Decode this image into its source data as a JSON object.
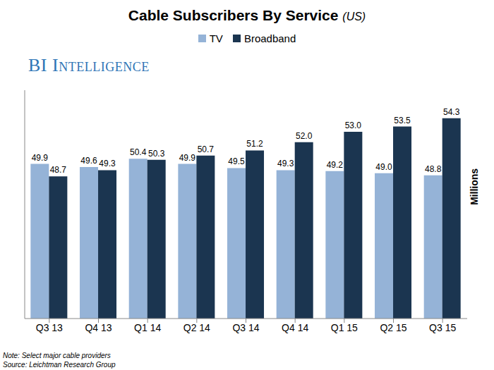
{
  "chart_data": {
    "type": "bar",
    "title": "Cable Subscribers By Service",
    "subtitle": "(US)",
    "watermark": "BI Intelligence",
    "y_label": "Millions",
    "note": "Note: Select major cable providers",
    "source": "Source: Leichtman Research Group",
    "categories": [
      "Q3 13",
      "Q4 13",
      "Q1 14",
      "Q2 14",
      "Q3 14",
      "Q4 14",
      "Q1 15",
      "Q2 15",
      "Q3 15"
    ],
    "series": [
      {
        "name": "TV",
        "color": "#95b3d7",
        "values": [
          49.9,
          49.6,
          50.4,
          49.9,
          49.5,
          49.3,
          49.2,
          49.0,
          48.8
        ],
        "value_labels": [
          "49.9",
          "49.6",
          "50.4",
          "49.9",
          "49.5",
          "49.3",
          "49.2",
          "49.0",
          "48.8"
        ]
      },
      {
        "name": "Broadband",
        "color": "#1b3550",
        "values": [
          48.7,
          49.3,
          50.3,
          50.7,
          51.2,
          52.0,
          53.0,
          53.5,
          54.3
        ],
        "value_labels": [
          "48.7",
          "49.3",
          "50.3",
          "50.7",
          "51.2",
          "52.0",
          "53.0",
          "53.5",
          "54.3"
        ]
      }
    ],
    "ylim": [
      35,
      57
    ],
    "yticks": [
      35,
      40,
      45,
      50,
      55
    ],
    "grid": false,
    "legend": "top",
    "data_labels": true,
    "tick_labels": "x"
  }
}
